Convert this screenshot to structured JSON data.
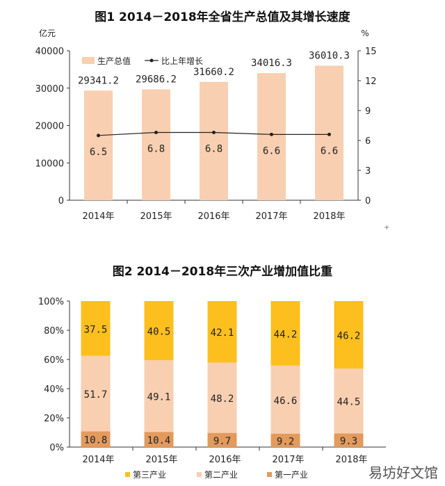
{
  "chart_data": [
    {
      "type": "bar",
      "title": "图1  2014－2018年全省生产总值及其增长速度",
      "left_unit": "亿元",
      "right_unit": "%",
      "categories": [
        "2014年",
        "2015年",
        "2016年",
        "2017年",
        "2018年"
      ],
      "bar_series": {
        "name": "生产总值",
        "values": [
          29341.2,
          29686.2,
          31660.2,
          34016.3,
          36010.3
        ],
        "labels": [
          "29341.2",
          "29686.2",
          "31660.2",
          "34016.3",
          "36010.3"
        ]
      },
      "line_series": {
        "name": "比上年增长",
        "values": [
          6.5,
          6.8,
          6.8,
          6.6,
          6.6
        ],
        "labels": [
          "6.5",
          "6.8",
          "6.8",
          "6.6",
          "6.6"
        ]
      },
      "ylim": [
        0,
        40000
      ],
      "yticks": [
        "0",
        "10000",
        "20000",
        "30000",
        "40000"
      ],
      "y2lim": [
        0,
        15
      ],
      "y2ticks": [
        "0",
        "3",
        "6",
        "9",
        "12",
        "15"
      ],
      "legend_position": "top-left",
      "colors": {
        "bar": "#f8cfb0",
        "line": "#222222"
      }
    },
    {
      "type": "bar",
      "stacked": true,
      "title": "图2  2014－2018年三次产业增加值比重",
      "categories": [
        "2014年",
        "2015年",
        "2016年",
        "2017年",
        "2018年"
      ],
      "ylim": [
        0,
        100
      ],
      "yticks": [
        "0%",
        "20%",
        "40%",
        "60%",
        "80%",
        "100%"
      ],
      "series": [
        {
          "name": "第一产业",
          "values": [
            10.8,
            10.4,
            9.7,
            9.2,
            9.3
          ],
          "labels": [
            "10.8",
            "10.4",
            "9.7",
            "9.2",
            "9.3"
          ],
          "color": "#e39a5d"
        },
        {
          "name": "第二产业",
          "values": [
            51.7,
            49.1,
            48.2,
            46.6,
            44.5
          ],
          "labels": [
            "51.7",
            "49.1",
            "48.2",
            "46.6",
            "44.5"
          ],
          "color": "#f8cfb0"
        },
        {
          "name": "第三产业",
          "values": [
            37.5,
            40.5,
            42.1,
            44.2,
            46.2
          ],
          "labels": [
            "37.5",
            "40.5",
            "42.1",
            "44.2",
            "46.2"
          ],
          "color": "#fcbf1e"
        }
      ],
      "legend_order": [
        "第三产业",
        "第二产业",
        "第一产业"
      ],
      "legend_position": "bottom"
    }
  ],
  "watermark": "易坊好文馆"
}
